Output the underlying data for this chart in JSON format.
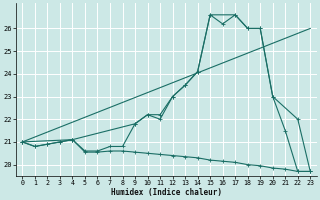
{
  "xlabel": "Humidex (Indice chaleur)",
  "bg_color": "#cce8e6",
  "grid_color": "#ffffff",
  "line_color": "#1a6e65",
  "xlim": [
    -0.5,
    23.5
  ],
  "ylim": [
    19.5,
    27.1
  ],
  "yticks": [
    20,
    21,
    22,
    23,
    24,
    25,
    26
  ],
  "xticks": [
    0,
    1,
    2,
    3,
    4,
    5,
    6,
    7,
    8,
    9,
    10,
    11,
    12,
    13,
    14,
    15,
    16,
    17,
    18,
    19,
    20,
    21,
    22,
    23
  ],
  "main_x": [
    0,
    1,
    2,
    3,
    4,
    5,
    6,
    7,
    8,
    9,
    10,
    11,
    12,
    13,
    14,
    15,
    16,
    17,
    18,
    19,
    20,
    21,
    22,
    23
  ],
  "main_y": [
    21.0,
    20.8,
    20.9,
    21.0,
    21.1,
    20.6,
    20.6,
    20.8,
    20.8,
    21.8,
    22.2,
    22.0,
    23.0,
    23.5,
    24.1,
    26.6,
    26.2,
    26.6,
    26.0,
    26.0,
    23.0,
    21.5,
    19.7,
    19.7
  ],
  "env_x": [
    0,
    4,
    9,
    10,
    11,
    12,
    13,
    14,
    15,
    17,
    18,
    19,
    20,
    22,
    23
  ],
  "env_y": [
    21.0,
    21.1,
    21.8,
    22.2,
    22.2,
    23.0,
    23.5,
    24.1,
    26.6,
    26.6,
    26.0,
    26.0,
    23.0,
    22.0,
    19.7
  ],
  "trend_x": [
    0,
    23
  ],
  "trend_y": [
    21.0,
    26.0
  ],
  "bot_x": [
    0,
    1,
    2,
    3,
    4,
    5,
    6,
    7,
    8,
    9,
    10,
    11,
    12,
    13,
    14,
    15,
    16,
    17,
    18,
    19,
    20,
    21,
    22,
    23
  ],
  "bot_y": [
    21.0,
    20.8,
    20.9,
    21.0,
    21.1,
    20.55,
    20.55,
    20.6,
    20.6,
    20.55,
    20.5,
    20.45,
    20.4,
    20.35,
    20.3,
    20.2,
    20.15,
    20.1,
    20.0,
    19.95,
    19.85,
    19.8,
    19.7,
    19.7
  ]
}
